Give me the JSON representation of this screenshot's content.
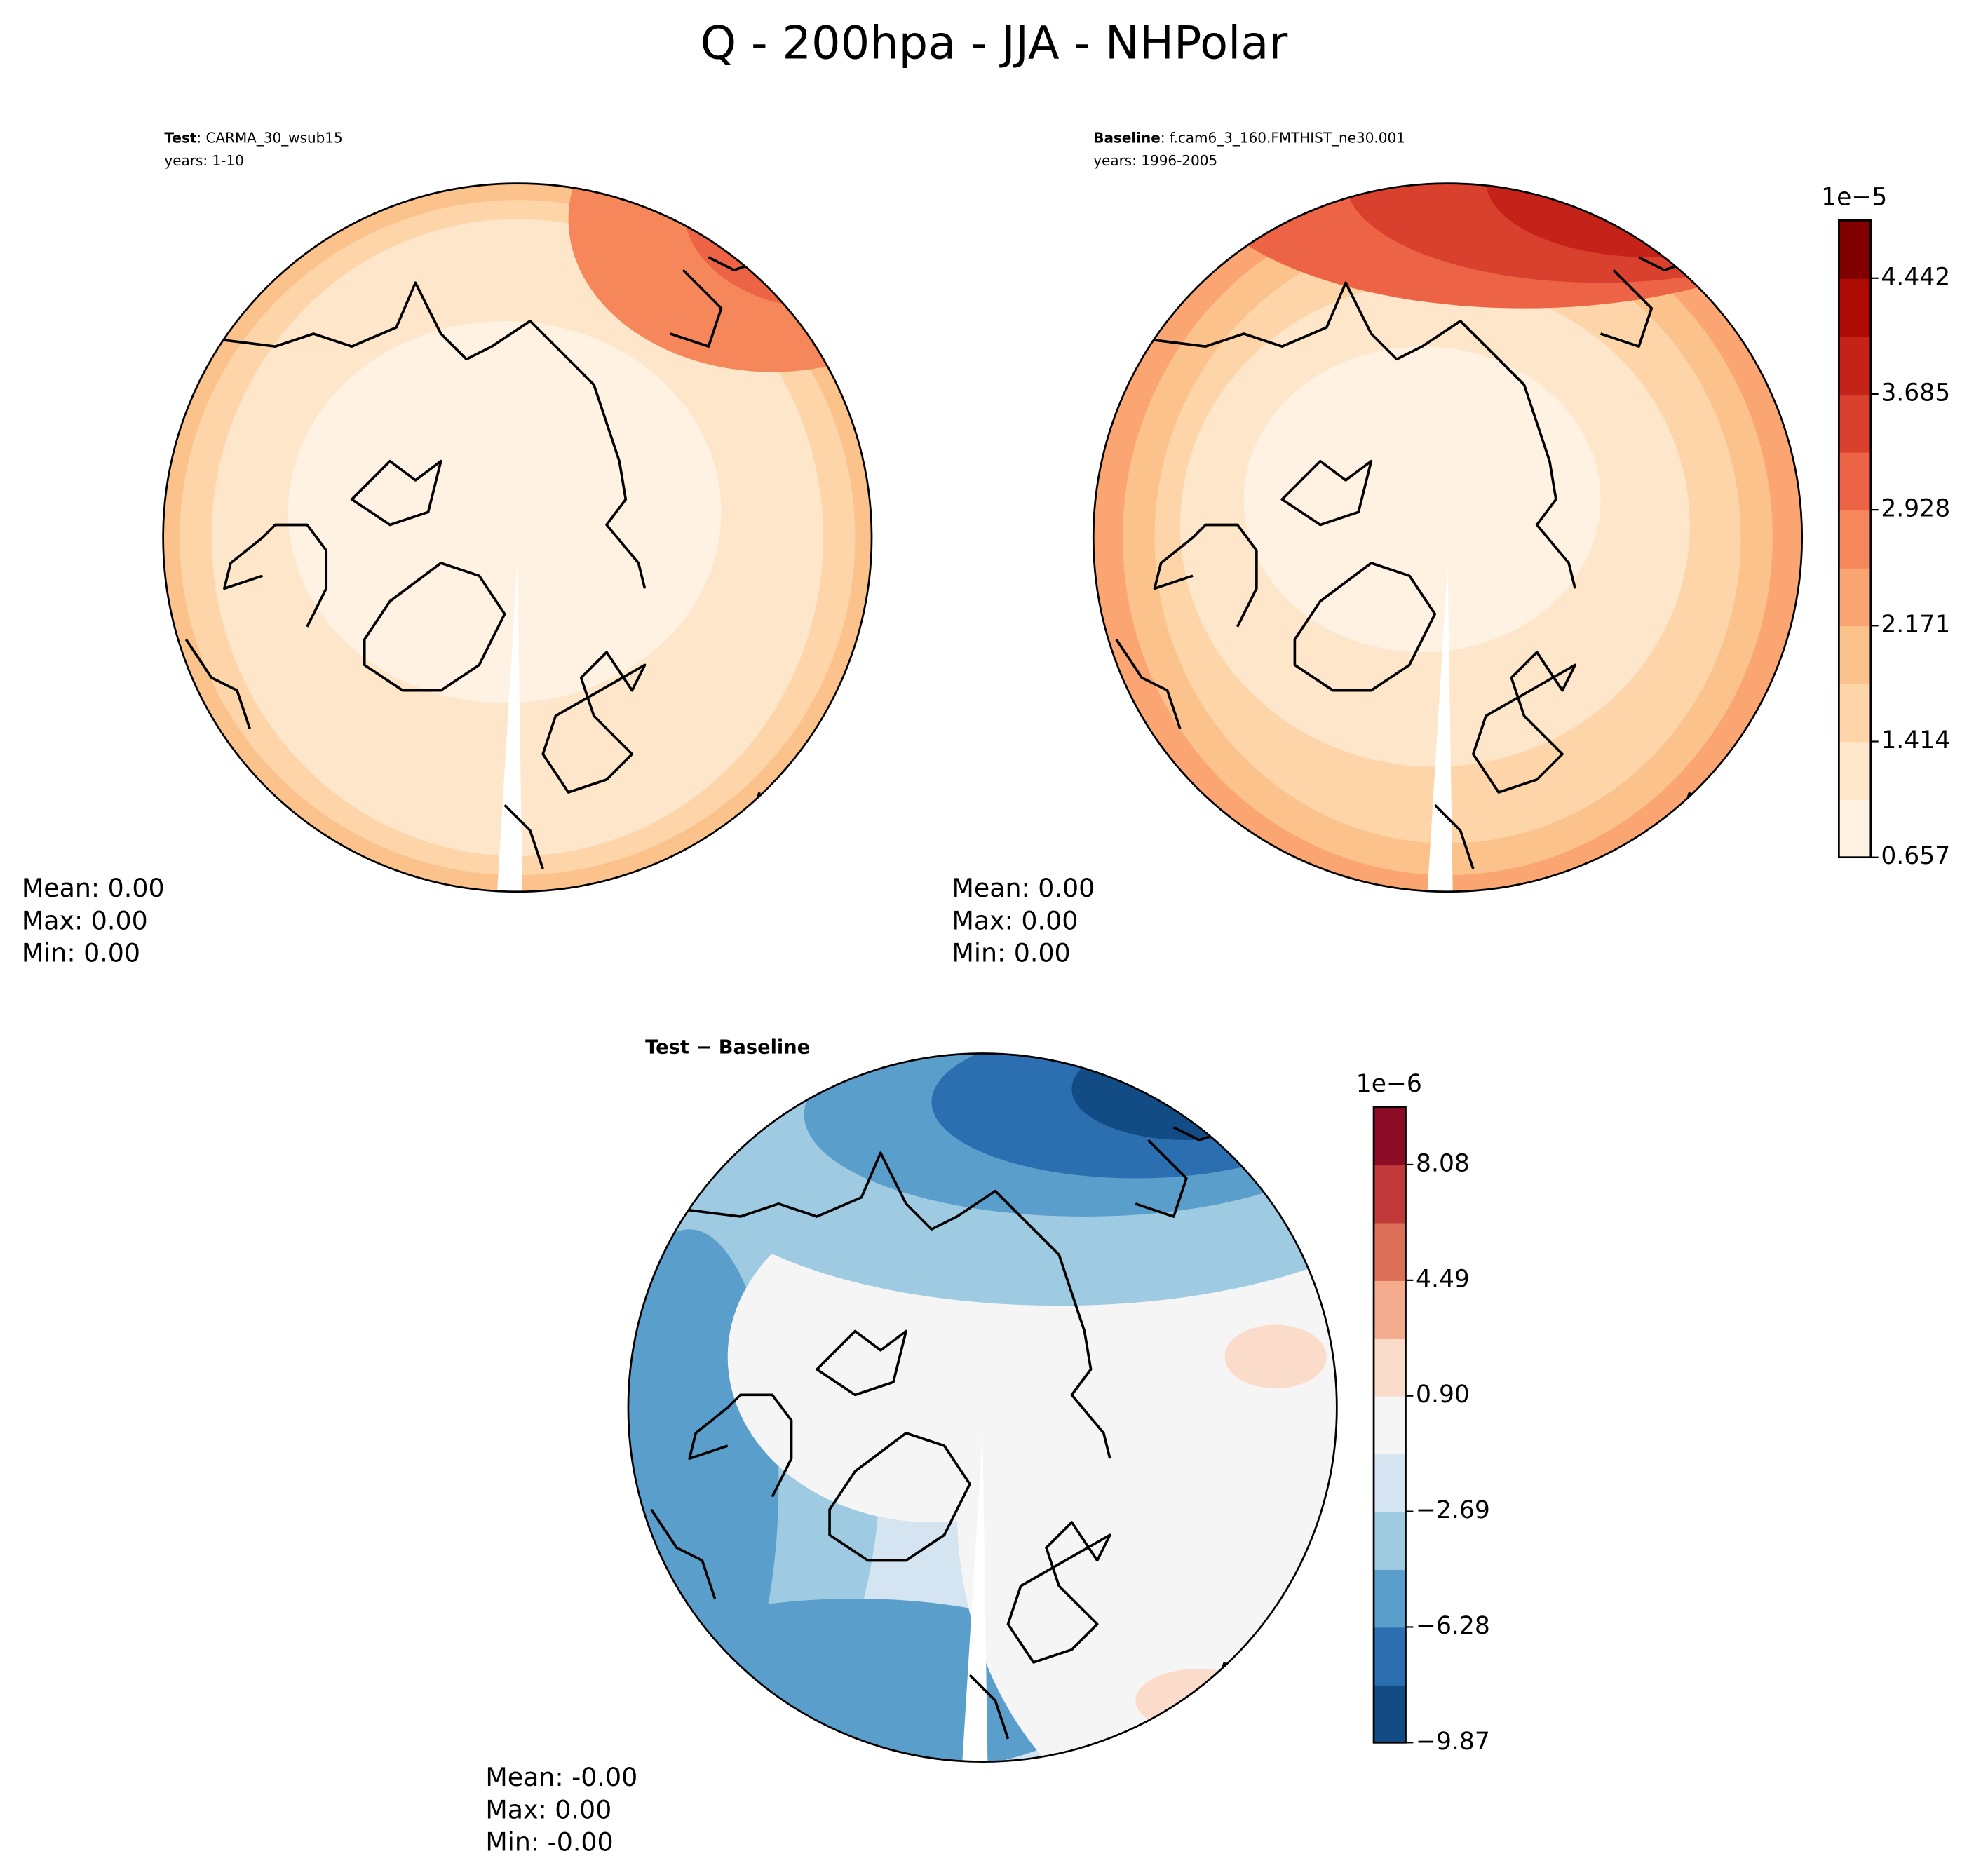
{
  "title": "Q - 200hpa - JJA - NHPolar",
  "panels": [
    {
      "label": "Test",
      "name": ": CARMA_30_wsub15",
      "years": "years: 1-10",
      "stats": [
        "Mean:  0.00",
        "Max:  0.00",
        "Min:  0.00"
      ]
    },
    {
      "label": "Baseline",
      "name": ": f.cam6_3_160.FMTHIST_ne30.001",
      "years": "years: 1996-2005",
      "stats": [
        "Mean:  0.00",
        "Max:  0.00",
        "Min:  0.00"
      ]
    },
    {
      "title": "Test − Baseline",
      "stats": [
        "Mean: -0.00",
        "Max:  0.00",
        "Min: -0.00"
      ]
    }
  ],
  "colorbars": [
    {
      "exponent": "1e−5",
      "lim": [
        0.657,
        4.82
      ],
      "ticks": [
        0.657,
        1.414,
        2.171,
        2.928,
        3.685,
        4.442
      ],
      "colors": [
        "#fff2e3",
        "#fee6cb",
        "#fdd5a9",
        "#fcc28c",
        "#fba572",
        "#f6875a",
        "#ec6445",
        "#d9402d",
        "#c5221a",
        "#ad0a04",
        "#800000"
      ]
    },
    {
      "exponent": "1e−6",
      "lim": [
        -9.87,
        9.87
      ],
      "ticks": [
        {
          "value": -9.87,
          "label": "−9.87"
        },
        {
          "value": -6.28,
          "label": "−6.28"
        },
        {
          "value": -2.69,
          "label": "−2.69"
        },
        {
          "value": 0.9,
          "label": "0.90"
        },
        4.49,
        8.08
      ],
      "colors": [
        "#134b85",
        "#2b6fb0",
        "#5a9ecb",
        "#9ecbe2",
        "#d4e5f1",
        "#f5f5f5",
        "#fbdccb",
        "#f5ab8d",
        "#dc6f58",
        "#c2393a",
        "#8c0c25"
      ]
    }
  ]
}
